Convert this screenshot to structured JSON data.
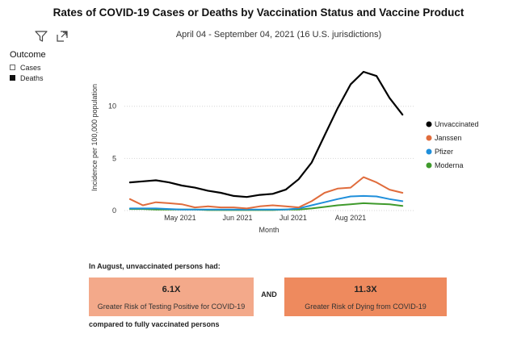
{
  "header": {
    "title": "Rates of COVID-19 Cases or Deaths by Vaccination Status and Vaccine Product",
    "subtitle": "April 04 - September 04, 2021 (16 U.S. jurisdictions)"
  },
  "toolbar": {
    "filter_icon": "filter-icon",
    "focus_icon": "focus-mode-icon"
  },
  "filter": {
    "title": "Outcome",
    "options": [
      {
        "label": "Cases",
        "checked": false
      },
      {
        "label": "Deaths",
        "checked": true
      }
    ]
  },
  "colors": {
    "Unvaccinated": "#000000",
    "Janssen": "#e06c3c",
    "Pfizer": "#1f8fdb",
    "Moderna": "#3f9a2c",
    "cases_box": "#f3a98a",
    "deaths_box": "#ee8a5e"
  },
  "chart_data": {
    "type": "line",
    "title": "Rates of COVID-19 Cases or Deaths by Vaccination Status and Vaccine Product",
    "subtitle": "April 04 - September 04, 2021 (16 U.S. jurisdictions)",
    "xlabel": "Month",
    "ylabel": "Incidence per 100,000 population",
    "x_ticks": [
      "May 2021",
      "Jun 2021",
      "Jul 2021",
      "Aug 2021"
    ],
    "x": [
      "2021-04-04",
      "2021-04-11",
      "2021-04-18",
      "2021-04-25",
      "2021-05-02",
      "2021-05-09",
      "2021-05-16",
      "2021-05-23",
      "2021-05-30",
      "2021-06-06",
      "2021-06-13",
      "2021-06-20",
      "2021-06-27",
      "2021-07-04",
      "2021-07-11",
      "2021-07-18",
      "2021-07-25",
      "2021-08-01",
      "2021-08-08",
      "2021-08-15",
      "2021-08-22",
      "2021-08-29"
    ],
    "y_ticks": [
      0,
      5,
      10
    ],
    "ylim": [
      0,
      14
    ],
    "grid": true,
    "legend_position": "right",
    "series": [
      {
        "name": "Unvaccinated",
        "values": [
          2.7,
          2.8,
          2.9,
          2.7,
          2.4,
          2.2,
          1.9,
          1.7,
          1.4,
          1.3,
          1.5,
          1.6,
          2.0,
          3.0,
          4.6,
          7.2,
          9.8,
          12.1,
          13.3,
          12.9,
          10.8,
          9.2
        ]
      },
      {
        "name": "Janssen",
        "values": [
          1.1,
          0.5,
          0.8,
          0.7,
          0.6,
          0.3,
          0.4,
          0.3,
          0.3,
          0.2,
          0.4,
          0.5,
          0.4,
          0.3,
          0.9,
          1.7,
          2.1,
          2.2,
          3.2,
          2.7,
          2.0,
          1.7
        ]
      },
      {
        "name": "Pfizer",
        "values": [
          0.2,
          0.2,
          0.2,
          0.15,
          0.1,
          0.1,
          0.1,
          0.1,
          0.1,
          0.1,
          0.1,
          0.1,
          0.1,
          0.2,
          0.5,
          0.8,
          1.1,
          1.35,
          1.4,
          1.35,
          1.1,
          0.9
        ]
      },
      {
        "name": "Moderna",
        "values": [
          0.15,
          0.15,
          0.1,
          0.1,
          0.1,
          0.1,
          0.05,
          0.05,
          0.05,
          0.05,
          0.05,
          0.05,
          0.1,
          0.1,
          0.2,
          0.35,
          0.5,
          0.6,
          0.7,
          0.65,
          0.6,
          0.45
        ]
      }
    ]
  },
  "summary": {
    "intro": "In August, unvaccinated persons had:",
    "cases_value": "6.1X",
    "cases_label": "Greater Risk of Testing Positive for COVID-19",
    "and_label": "AND",
    "deaths_value": "11.3X",
    "deaths_label": "Greater Risk of Dying from COVID-19",
    "outro": "compared to fully vaccinated persons"
  }
}
